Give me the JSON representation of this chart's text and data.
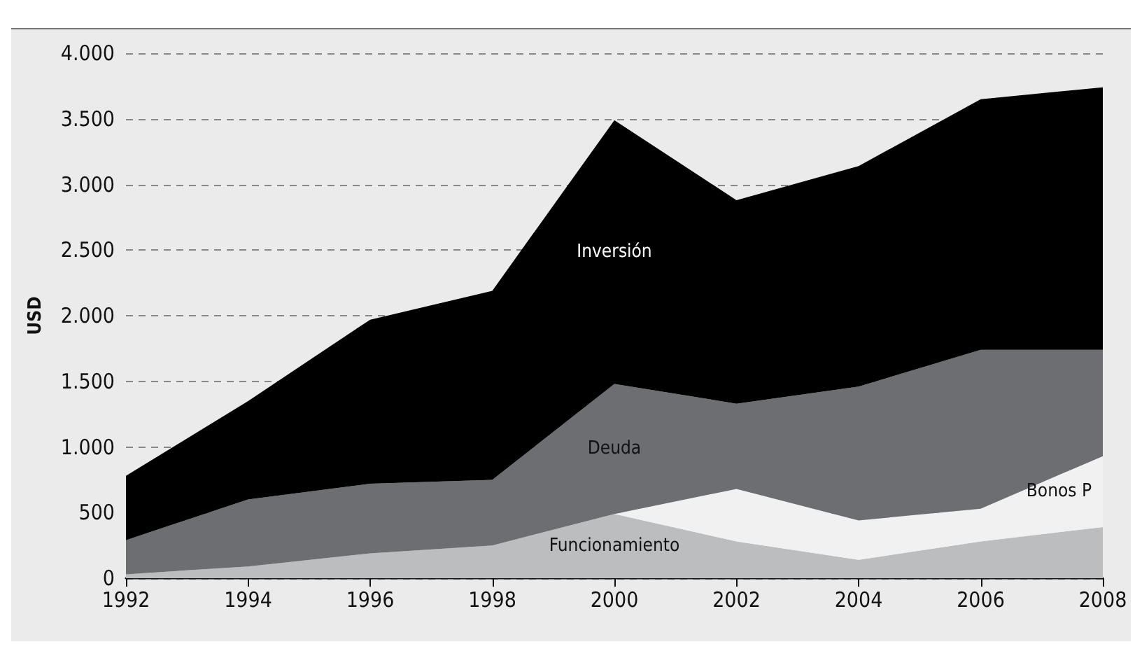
{
  "chart_data": {
    "type": "area",
    "stacked": true,
    "ylabel": "USD",
    "x": [
      1992,
      1994,
      1996,
      1998,
      2000,
      2002,
      2004,
      2006,
      2008
    ],
    "series": [
      {
        "name": "Funcionamiento",
        "color": "#bcbdbf",
        "values": [
          30,
          90,
          190,
          250,
          490,
          280,
          140,
          280,
          390
        ]
      },
      {
        "name": "Bonos P",
        "color": "#f1f1f1",
        "values": [
          0,
          0,
          0,
          0,
          0,
          400,
          300,
          250,
          540
        ]
      },
      {
        "name": "Deuda",
        "color": "#6d6e71",
        "values": [
          260,
          510,
          530,
          500,
          990,
          650,
          1020,
          1210,
          810
        ]
      },
      {
        "name": "Inversión",
        "color": "#000000",
        "values": [
          490,
          750,
          1250,
          1440,
          2010,
          1550,
          1680,
          1910,
          2000
        ]
      }
    ],
    "xlim": [
      1992,
      2008
    ],
    "xticks": [
      1992,
      1994,
      1996,
      1998,
      2000,
      2002,
      2004,
      2006,
      2008
    ],
    "ylim": [
      0,
      4000
    ],
    "yticks": [
      0,
      500,
      {
        "value": 1000,
        "label": "1.000"
      },
      {
        "value": 1500,
        "label": "1.500"
      },
      {
        "value": 2000,
        "label": "2.000"
      },
      {
        "value": 2500,
        "label": "2.500"
      },
      {
        "value": 3000,
        "label": "3.000"
      },
      {
        "value": 3500,
        "label": "3.500"
      },
      {
        "value": 4000,
        "label": "4.000"
      }
    ],
    "grid": "y",
    "legend": false
  }
}
